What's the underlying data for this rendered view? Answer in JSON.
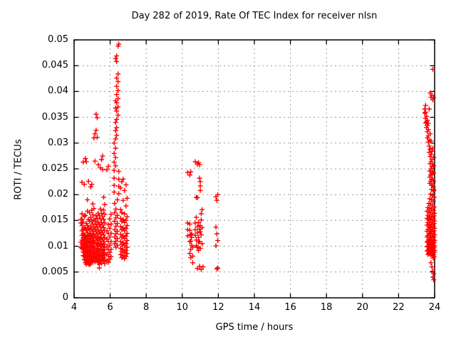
{
  "colors": {
    "marker": "#ff0000",
    "grid": "#9c9c9c",
    "frame": "#000000",
    "background": "#ffffff"
  },
  "chart_data": {
    "type": "scatter",
    "title": "Day 282 of 2019, Rate Of TEC Index for receiver nlsn",
    "xlabel": "GPS time / hours",
    "ylabel": "ROTI / TECUs",
    "xlim": [
      4,
      24
    ],
    "ylim": [
      0,
      0.05
    ],
    "x_ticks": [
      4,
      6,
      8,
      10,
      12,
      14,
      16,
      18,
      20,
      22,
      24
    ],
    "y_ticks": [
      0,
      0.005,
      0.01,
      0.015,
      0.02,
      0.025,
      0.03,
      0.035,
      0.04,
      0.045,
      0.05
    ],
    "y_tick_labels": [
      "0",
      "0.005",
      "0.01",
      "0.015",
      "0.02",
      "0.025",
      "0.03",
      "0.035",
      "0.04",
      "0.045",
      "0.05"
    ],
    "grid": true,
    "legend": "none",
    "marker": "plus",
    "series": [
      {
        "name": "ROTI",
        "color": "#ff0000",
        "streaks": [
          [
            4.38,
            0.0098,
            0.0108,
            0.0145,
            0.0152
          ],
          [
            4.44,
            0.0096,
            0.0104,
            0.0112,
            0.0121,
            0.013,
            0.014,
            0.0152,
            0.0163,
            0.0224
          ],
          [
            4.5,
            0.0082,
            0.0089,
            0.0095,
            0.0101,
            0.0108,
            0.0116,
            0.0124,
            0.0133,
            0.0147,
            0.0263
          ],
          [
            4.56,
            0.0074,
            0.0081,
            0.0088,
            0.0096,
            0.0104,
            0.0113,
            0.0122,
            0.0136,
            0.0158,
            0.022
          ],
          [
            4.62,
            0.0068,
            0.0075,
            0.0083,
            0.0092,
            0.0102,
            0.0111,
            0.012,
            0.0134,
            0.016,
            0.027
          ],
          [
            4.68,
            0.0065,
            0.0072,
            0.008,
            0.0089,
            0.0098,
            0.0107,
            0.0118,
            0.013,
            0.0144,
            0.0264
          ],
          [
            4.74,
            0.007,
            0.0078,
            0.0087,
            0.0097,
            0.0106,
            0.0115,
            0.0126,
            0.014,
            0.0168,
            0.019
          ],
          [
            4.8,
            0.0066,
            0.0074,
            0.0082,
            0.0091,
            0.01,
            0.011,
            0.0121,
            0.0135,
            0.0152,
            0.0226
          ],
          [
            4.86,
            0.0064,
            0.0071,
            0.0079,
            0.0088,
            0.0097,
            0.0108,
            0.0119,
            0.0132,
            0.0148,
            0.0165
          ],
          [
            4.92,
            0.0067,
            0.0075,
            0.0084,
            0.0093,
            0.0103,
            0.0114,
            0.0125,
            0.0139,
            0.0156,
            0.0215
          ],
          [
            4.98,
            0.0072,
            0.008,
            0.0089,
            0.0099,
            0.0109,
            0.012,
            0.0133,
            0.0149,
            0.017,
            0.022
          ],
          [
            5.04,
            0.0069,
            0.0077,
            0.0086,
            0.0096,
            0.0106,
            0.0117,
            0.0129,
            0.0143,
            0.0161,
            0.0182
          ],
          [
            5.1,
            0.0073,
            0.0081,
            0.009,
            0.01,
            0.0111,
            0.0123,
            0.0136,
            0.0152,
            0.0173,
            0.031
          ],
          [
            5.16,
            0.007,
            0.0078,
            0.0087,
            0.0097,
            0.0108,
            0.012,
            0.0133,
            0.0148,
            0.0265,
            0.0318
          ],
          [
            5.22,
            0.0076,
            0.0084,
            0.0093,
            0.0104,
            0.0115,
            0.0128,
            0.0142,
            0.0159,
            0.0325,
            0.0356
          ],
          [
            5.28,
            0.0072,
            0.008,
            0.009,
            0.01,
            0.0112,
            0.0124,
            0.0138,
            0.0154,
            0.0311,
            0.0349
          ],
          [
            5.34,
            0.0068,
            0.0076,
            0.0085,
            0.0095,
            0.0106,
            0.0118,
            0.0131,
            0.0146,
            0.0164,
            0.0258
          ],
          [
            5.4,
            0.0058,
            0.0065,
            0.0073,
            0.0082,
            0.0092,
            0.0103,
            0.0115,
            0.0128,
            0.0143,
            0.016
          ],
          [
            5.46,
            0.0071,
            0.0079,
            0.0088,
            0.0099,
            0.011,
            0.0123,
            0.0137,
            0.0153,
            0.0172,
            0.0252
          ],
          [
            5.52,
            0.0067,
            0.0075,
            0.0084,
            0.0094,
            0.0105,
            0.0117,
            0.0131,
            0.0146,
            0.0164,
            0.0268
          ],
          [
            5.58,
            0.0074,
            0.0082,
            0.0091,
            0.0102,
            0.0113,
            0.0126,
            0.0141,
            0.0157,
            0.0249,
            0.0275
          ],
          [
            5.64,
            0.007,
            0.0078,
            0.0087,
            0.0098,
            0.0109,
            0.0122,
            0.0136,
            0.0152,
            0.017,
            0.0195
          ],
          [
            5.7,
            0.0066,
            0.0074,
            0.0083,
            0.0093,
            0.0104,
            0.0116,
            0.013,
            0.0145,
            0.0162,
            0.0181
          ],
          [
            5.82,
            0.0072,
            0.0085,
            0.0099,
            0.0114,
            0.013,
            0.0248
          ],
          [
            5.9,
            0.0069,
            0.0081,
            0.0094,
            0.0109,
            0.0125,
            0.0142,
            0.0255
          ],
          [
            5.98,
            0.0075,
            0.0088,
            0.0102,
            0.0118,
            0.0135,
            0.0153
          ],
          [
            6.05,
            0.008,
            0.0094,
            0.0109,
            0.0125,
            0.0143,
            0.0162
          ],
          [
            6.22,
            0.0205,
            0.0218,
            0.0232,
            0.0247,
            0.0263,
            0.028,
            0.03
          ],
          [
            6.25,
            0.0105,
            0.0118,
            0.0132,
            0.0148,
            0.0165,
            0.0183
          ],
          [
            6.3,
            0.0256,
            0.0272,
            0.029,
            0.0308,
            0.0324,
            0.034,
            0.0368,
            0.0382,
            0.0464
          ],
          [
            6.32,
            0.0098,
            0.011,
            0.0124,
            0.0139,
            0.0155,
            0.0172
          ],
          [
            6.36,
            0.0315,
            0.033,
            0.0346,
            0.0362,
            0.0378,
            0.0394,
            0.041,
            0.0426,
            0.0458,
            0.0469
          ],
          [
            6.4,
            0.0102,
            0.0115,
            0.0129,
            0.0144,
            0.016,
            0.019
          ],
          [
            6.44,
            0.0354,
            0.037,
            0.0386,
            0.0402,
            0.0419,
            0.0434,
            0.0488
          ],
          [
            6.48,
            0.0202,
            0.0216,
            0.023,
            0.0245,
            0.0492
          ],
          [
            6.58,
            0.0084,
            0.0096,
            0.0109,
            0.0123,
            0.0138,
            0.0154,
            0.0171,
            0.0213
          ],
          [
            6.65,
            0.0078,
            0.009,
            0.0103,
            0.0117,
            0.0132,
            0.0148,
            0.0165,
            0.0225
          ],
          [
            6.72,
            0.0082,
            0.0094,
            0.0107,
            0.0121,
            0.0136,
            0.0152,
            0.0189,
            0.023
          ],
          [
            6.8,
            0.0076,
            0.0088,
            0.0101,
            0.0115,
            0.013,
            0.0146,
            0.0163,
            0.0208
          ],
          [
            6.88,
            0.008,
            0.0092,
            0.0105,
            0.0119,
            0.0134,
            0.015,
            0.0178,
            0.0219
          ],
          [
            6.94,
            0.0086,
            0.0098,
            0.0111,
            0.0125,
            0.014,
            0.0157,
            0.0193
          ],
          [
            10.3,
            0.0243,
            0.0145,
            0.0132,
            0.012
          ],
          [
            10.42,
            0.0238,
            0.0143,
            0.0131,
            0.0109,
            0.0086
          ],
          [
            10.47,
            0.0244,
            0.0122,
            0.011,
            0.0094,
            0.0078
          ],
          [
            10.52,
            0.0117,
            0.0102,
            0.0124
          ],
          [
            10.58,
            0.0098,
            0.0068,
            0.0081
          ],
          [
            10.72,
            0.0132,
            0.0121,
            0.0145,
            0.0264
          ],
          [
            10.78,
            0.0112,
            0.0101,
            0.0156,
            0.0195
          ],
          [
            10.84,
            0.0259,
            0.0194,
            0.0138,
            0.0126,
            0.0098,
            0.0057
          ],
          [
            10.9,
            0.0262,
            0.0146,
            0.0117,
            0.0108,
            0.0092
          ],
          [
            10.96,
            0.0258,
            0.0232,
            0.0133,
            0.0109,
            0.0061
          ],
          [
            11.0,
            0.0225,
            0.0217,
            0.0208,
            0.014,
            0.0128,
            0.0096
          ],
          [
            11.05,
            0.0163,
            0.0151,
            0.0122,
            0.0055
          ],
          [
            11.1,
            0.0136,
            0.0171,
            0.0105
          ],
          [
            11.15,
            0.006
          ],
          [
            11.87,
            0.0196,
            0.0137,
            0.0101
          ],
          [
            11.92,
            0.0189,
            0.0124,
            0.0056
          ],
          [
            11.97,
            0.02,
            0.0111,
            0.0058
          ],
          [
            23.45,
            0.0366,
            0.0358
          ],
          [
            23.5,
            0.0373,
            0.036,
            0.0348,
            0.0339
          ],
          [
            23.55,
            0.0352,
            0.0341,
            0.033
          ],
          [
            23.6,
            0.0344,
            0.0334,
            0.0322,
            0.031
          ],
          [
            23.65,
            0.0338,
            0.0326,
            0.0314,
            0.0302
          ],
          [
            23.7,
            0.0366,
            0.0306,
            0.0294,
            0.0282
          ],
          [
            23.75,
            0.0397,
            0.0318,
            0.0288,
            0.0274,
            0.026
          ],
          [
            23.8,
            0.0389,
            0.0304,
            0.0278,
            0.0264,
            0.025,
            0.0068
          ],
          [
            23.85,
            0.0393,
            0.0284,
            0.0268,
            0.0254,
            0.024,
            0.006
          ],
          [
            23.9,
            0.0443,
            0.0384,
            0.029,
            0.026,
            0.0244,
            0.023,
            0.0052,
            0.004
          ],
          [
            23.95,
            0.0388,
            0.0272,
            0.0256,
            0.0242,
            0.0226,
            0.0047,
            0.0035
          ],
          [
            23.58,
            0.0168,
            0.0154,
            0.0141,
            0.0129,
            0.0118,
            0.0108,
            0.0099,
            0.0091
          ],
          [
            23.63,
            0.0175,
            0.016,
            0.0146,
            0.0133,
            0.0121,
            0.011,
            0.01,
            0.0092,
            0.0084
          ],
          [
            23.68,
            0.0183,
            0.0167,
            0.0152,
            0.0138,
            0.0125,
            0.0113,
            0.0103,
            0.0094,
            0.0086
          ],
          [
            23.73,
            0.0246,
            0.0234,
            0.0222,
            0.0192,
            0.0174,
            0.0158,
            0.0143,
            0.013,
            0.0118,
            0.0107,
            0.0097,
            0.0088
          ],
          [
            23.78,
            0.0238,
            0.0226,
            0.0201,
            0.0182,
            0.0165,
            0.015,
            0.0136,
            0.0123,
            0.0111,
            0.0101,
            0.0092,
            0.0083
          ],
          [
            23.83,
            0.0229,
            0.0218,
            0.021,
            0.019,
            0.0172,
            0.0156,
            0.0141,
            0.0128,
            0.0116,
            0.0105,
            0.0095,
            0.0086
          ],
          [
            23.88,
            0.0219,
            0.0198,
            0.0179,
            0.0162,
            0.0147,
            0.0133,
            0.012,
            0.0109,
            0.0099,
            0.009,
            0.0081
          ],
          [
            23.93,
            0.0214,
            0.0207,
            0.0187,
            0.0169,
            0.0153,
            0.0138,
            0.0125,
            0.0113,
            0.0102,
            0.0093,
            0.0084,
            0.0077
          ],
          [
            23.97,
            0.0209,
            0.0195,
            0.0176,
            0.0159,
            0.0144,
            0.013,
            0.0118,
            0.0107,
            0.0097,
            0.0088,
            0.008
          ],
          [
            24.0,
            0.0164,
            0.0149,
            0.0135,
            0.0122,
            0.0111,
            0.01,
            0.0091
          ]
        ]
      }
    ]
  }
}
